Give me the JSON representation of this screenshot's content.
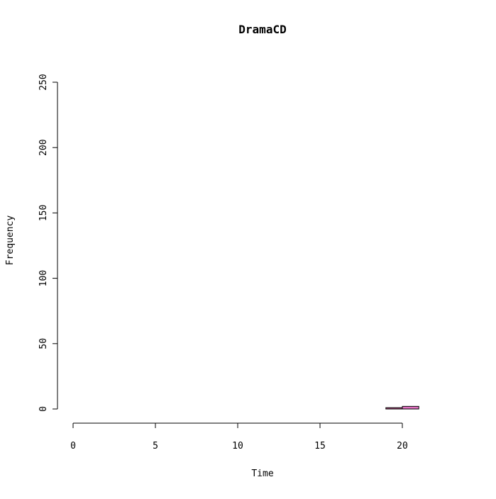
{
  "chart_data": {
    "type": "bar",
    "title": "DramaCD",
    "xlabel": "Time",
    "ylabel": "Frequency",
    "xlim": [
      -1,
      24
    ],
    "ylim": [
      0,
      250
    ],
    "x_ticks": [
      0,
      5,
      10,
      15,
      20
    ],
    "y_ticks": [
      0,
      50,
      100,
      150,
      200,
      250
    ],
    "bin_width": 1,
    "bins": [
      {
        "start": 0,
        "end": 1,
        "count": 0
      },
      {
        "start": 1,
        "end": 2,
        "count": 0
      },
      {
        "start": 2,
        "end": 3,
        "count": 0
      },
      {
        "start": 3,
        "end": 4,
        "count": 0
      },
      {
        "start": 4,
        "end": 5,
        "count": 0
      },
      {
        "start": 5,
        "end": 6,
        "count": 0
      },
      {
        "start": 6,
        "end": 7,
        "count": 0
      },
      {
        "start": 7,
        "end": 8,
        "count": 0
      },
      {
        "start": 8,
        "end": 9,
        "count": 0
      },
      {
        "start": 9,
        "end": 10,
        "count": 0
      },
      {
        "start": 10,
        "end": 11,
        "count": 0
      },
      {
        "start": 11,
        "end": 12,
        "count": 0
      },
      {
        "start": 12,
        "end": 13,
        "count": 0
      },
      {
        "start": 13,
        "end": 14,
        "count": 0
      },
      {
        "start": 14,
        "end": 15,
        "count": 0
      },
      {
        "start": 15,
        "end": 16,
        "count": 0
      },
      {
        "start": 16,
        "end": 17,
        "count": 0
      },
      {
        "start": 17,
        "end": 18,
        "count": 0
      },
      {
        "start": 18,
        "end": 19,
        "count": 0
      },
      {
        "start": 19,
        "end": 20,
        "count": 1
      },
      {
        "start": 20,
        "end": 21,
        "count": 2
      },
      {
        "start": 21,
        "end": 22,
        "count": 0
      },
      {
        "start": 22,
        "end": 23,
        "count": 0
      },
      {
        "start": 23,
        "end": 24,
        "count": 0
      }
    ],
    "bar_colors": {
      "19": "#c0508a",
      "20": "#e06fc0"
    },
    "bar_fill_default": "#e06fc0",
    "bar_stroke": "#000000",
    "grid": false,
    "legend": "none"
  }
}
